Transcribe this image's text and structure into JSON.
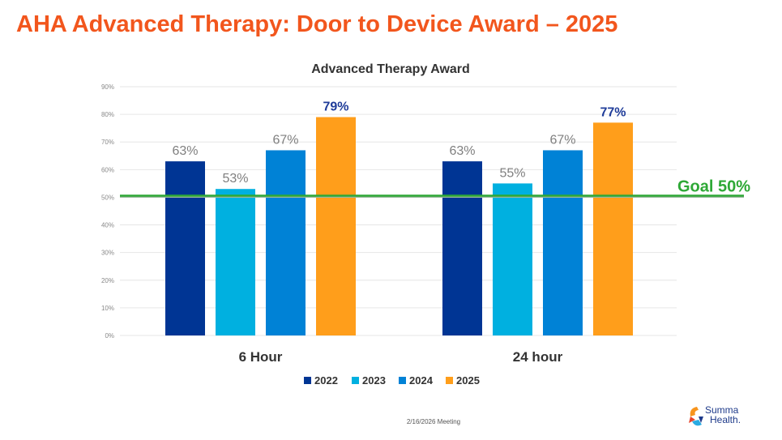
{
  "slide": {
    "title": "AHA Advanced Therapy: Door to Device Award – 2025",
    "footer": "2/16/2026 Meeting",
    "logo": {
      "line1": "Summa",
      "line2": "Health."
    }
  },
  "chart_data": {
    "type": "bar",
    "title": "Advanced Therapy Award",
    "categories": [
      "6 Hour",
      "24 hour"
    ],
    "series": [
      {
        "name": "2022",
        "values": [
          63,
          63
        ],
        "color": "#003594"
      },
      {
        "name": "2023",
        "values": [
          53,
          55
        ],
        "color": "#00b0e0"
      },
      {
        "name": "2024",
        "values": [
          67,
          67
        ],
        "color": "#0082d6"
      },
      {
        "name": "2025",
        "values": [
          79,
          77
        ],
        "color": "#ff9e1b"
      }
    ],
    "data_labels": [
      [
        "63%",
        "63%"
      ],
      [
        "53%",
        "55%"
      ],
      [
        "67%",
        "67%"
      ],
      [
        "79%",
        "77%"
      ]
    ],
    "ylim": [
      0,
      90
    ],
    "yticks": [
      "0%",
      "10%",
      "20%",
      "30%",
      "40%",
      "50%",
      "60%",
      "70%",
      "80%",
      "90%"
    ],
    "grid": true,
    "legend": "bottom",
    "goal": {
      "label": "Goal 50%",
      "value": 50,
      "color": "#2ea836"
    }
  }
}
